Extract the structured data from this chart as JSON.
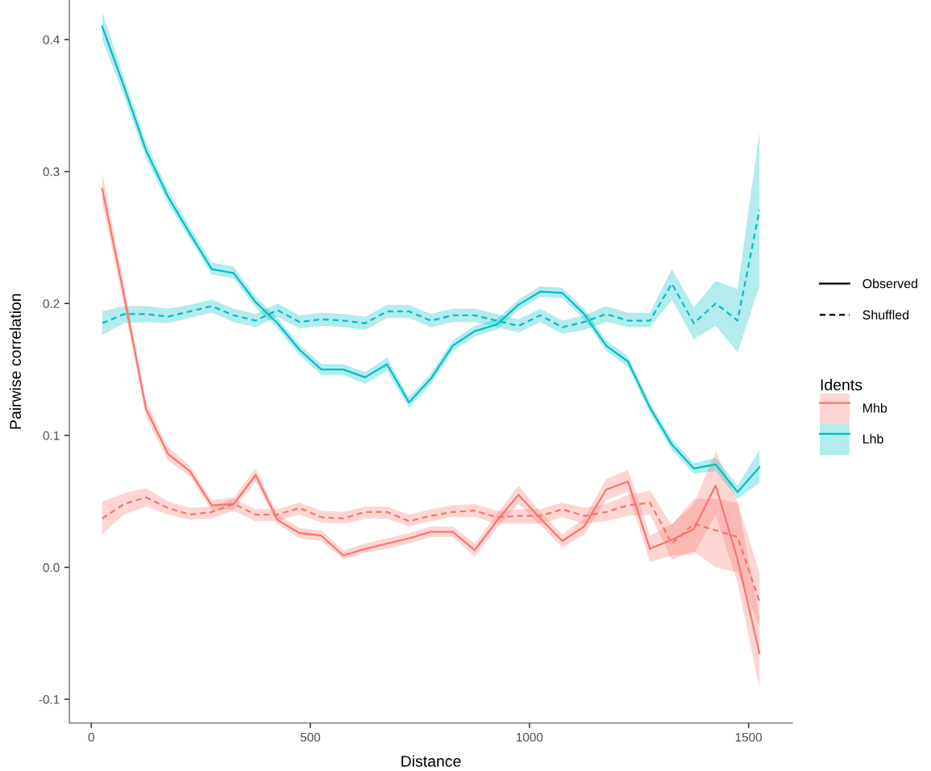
{
  "chart_data": {
    "type": "line",
    "xlabel": "Distance",
    "ylabel": "Pairwise correlation",
    "legend_title": "Idents",
    "legend": "right",
    "grid": false,
    "annotations": [
      "Observed",
      "Shuffled"
    ],
    "x": [
      25,
      75,
      125,
      175,
      225,
      275,
      325,
      375,
      425,
      475,
      525,
      575,
      625,
      675,
      725,
      775,
      825,
      875,
      925,
      975,
      1025,
      1075,
      1125,
      1175,
      1225,
      1275,
      1325,
      1375,
      1425,
      1475,
      1525
    ],
    "xlim": [
      -50,
      1600
    ],
    "xticks": [
      0,
      500,
      1000,
      1500
    ],
    "ylim": [
      -0.118,
      0.43
    ],
    "yticks": [
      -0.1,
      {
        "value": 0.0,
        "label": "0.0"
      },
      0.1,
      0.2,
      0.3,
      0.4
    ],
    "series": [
      {
        "name": "Mhb",
        "color": "#f8766d",
        "line_style": "solid",
        "values": [
          0.287,
          0.206,
          0.12,
          0.086,
          0.073,
          0.047,
          0.048,
          0.07,
          0.036,
          0.026,
          0.024,
          0.009,
          0.014,
          0.018,
          0.022,
          0.027,
          0.027,
          0.013,
          0.035,
          0.055,
          0.037,
          0.02,
          0.031,
          0.059,
          0.065,
          0.014,
          0.021,
          0.029,
          0.062,
          0.006,
          -0.065
        ],
        "lower": [
          0.276,
          0.198,
          0.114,
          0.081,
          0.069,
          0.043,
          0.044,
          0.065,
          0.033,
          0.022,
          0.02,
          0.006,
          0.011,
          0.014,
          0.018,
          0.023,
          0.023,
          0.008,
          0.03,
          0.048,
          0.032,
          0.015,
          0.025,
          0.051,
          0.057,
          0.004,
          0.009,
          0.01,
          0.04,
          -0.012,
          -0.092
        ],
        "upper": [
          0.299,
          0.214,
          0.126,
          0.091,
          0.077,
          0.051,
          0.053,
          0.075,
          0.04,
          0.03,
          0.028,
          0.013,
          0.018,
          0.022,
          0.026,
          0.031,
          0.031,
          0.018,
          0.04,
          0.062,
          0.042,
          0.025,
          0.037,
          0.067,
          0.074,
          0.024,
          0.033,
          0.048,
          0.088,
          0.05,
          -0.038
        ]
      },
      {
        "color": "#f8766d",
        "line_style": "dashed",
        "values": [
          0.037,
          0.048,
          0.053,
          0.045,
          0.04,
          0.042,
          0.048,
          0.04,
          0.04,
          0.045,
          0.038,
          0.037,
          0.042,
          0.042,
          0.035,
          0.039,
          0.042,
          0.043,
          0.038,
          0.039,
          0.039,
          0.044,
          0.039,
          0.042,
          0.047,
          0.049,
          0.018,
          0.033,
          0.028,
          0.023,
          -0.026
        ],
        "lower": [
          0.025,
          0.04,
          0.046,
          0.04,
          0.036,
          0.037,
          0.043,
          0.035,
          0.035,
          0.04,
          0.034,
          0.033,
          0.037,
          0.037,
          0.031,
          0.035,
          0.038,
          0.038,
          0.033,
          0.033,
          0.033,
          0.038,
          0.033,
          0.035,
          0.039,
          0.04,
          0.006,
          0.012,
          0.0,
          -0.004,
          -0.045
        ],
        "upper": [
          0.05,
          0.056,
          0.06,
          0.05,
          0.045,
          0.046,
          0.052,
          0.044,
          0.044,
          0.049,
          0.043,
          0.042,
          0.046,
          0.046,
          0.04,
          0.044,
          0.047,
          0.048,
          0.043,
          0.044,
          0.044,
          0.049,
          0.045,
          0.048,
          0.055,
          0.058,
          0.032,
          0.052,
          0.052,
          0.049,
          -0.004
        ]
      },
      {
        "name": "Lhb",
        "color": "#00bfc4",
        "line_style": "solid",
        "values": [
          0.41,
          0.364,
          0.316,
          0.281,
          0.253,
          0.226,
          0.223,
          0.201,
          0.185,
          0.165,
          0.15,
          0.15,
          0.144,
          0.154,
          0.125,
          0.143,
          0.168,
          0.179,
          0.184,
          0.199,
          0.209,
          0.208,
          0.192,
          0.168,
          0.156,
          0.121,
          0.093,
          0.075,
          0.078,
          0.057,
          0.076
        ],
        "lower": [
          0.4,
          0.357,
          0.31,
          0.276,
          0.249,
          0.222,
          0.219,
          0.197,
          0.181,
          0.161,
          0.146,
          0.146,
          0.139,
          0.149,
          0.121,
          0.139,
          0.164,
          0.175,
          0.18,
          0.195,
          0.205,
          0.204,
          0.188,
          0.164,
          0.152,
          0.117,
          0.089,
          0.071,
          0.073,
          0.052,
          0.064
        ],
        "upper": [
          0.421,
          0.371,
          0.322,
          0.286,
          0.258,
          0.231,
          0.228,
          0.205,
          0.189,
          0.169,
          0.154,
          0.154,
          0.148,
          0.159,
          0.129,
          0.147,
          0.172,
          0.183,
          0.188,
          0.203,
          0.213,
          0.212,
          0.196,
          0.172,
          0.16,
          0.125,
          0.097,
          0.079,
          0.083,
          0.062,
          0.089
        ]
      },
      {
        "color": "#00bfc4",
        "line_style": "dashed",
        "values": [
          0.185,
          0.192,
          0.192,
          0.19,
          0.194,
          0.198,
          0.191,
          0.187,
          0.195,
          0.186,
          0.188,
          0.187,
          0.185,
          0.194,
          0.194,
          0.187,
          0.191,
          0.191,
          0.187,
          0.183,
          0.191,
          0.182,
          0.186,
          0.192,
          0.187,
          0.187,
          0.215,
          0.185,
          0.2,
          0.187,
          0.271
        ],
        "lower": [
          0.176,
          0.185,
          0.186,
          0.185,
          0.189,
          0.193,
          0.186,
          0.182,
          0.19,
          0.181,
          0.183,
          0.182,
          0.18,
          0.189,
          0.189,
          0.182,
          0.186,
          0.186,
          0.182,
          0.178,
          0.186,
          0.177,
          0.18,
          0.186,
          0.182,
          0.182,
          0.203,
          0.173,
          0.183,
          0.163,
          0.213
        ],
        "upper": [
          0.194,
          0.198,
          0.198,
          0.196,
          0.199,
          0.203,
          0.196,
          0.192,
          0.2,
          0.191,
          0.193,
          0.192,
          0.19,
          0.199,
          0.199,
          0.192,
          0.196,
          0.196,
          0.192,
          0.188,
          0.196,
          0.187,
          0.191,
          0.198,
          0.193,
          0.193,
          0.226,
          0.197,
          0.217,
          0.211,
          0.33
        ]
      }
    ]
  }
}
